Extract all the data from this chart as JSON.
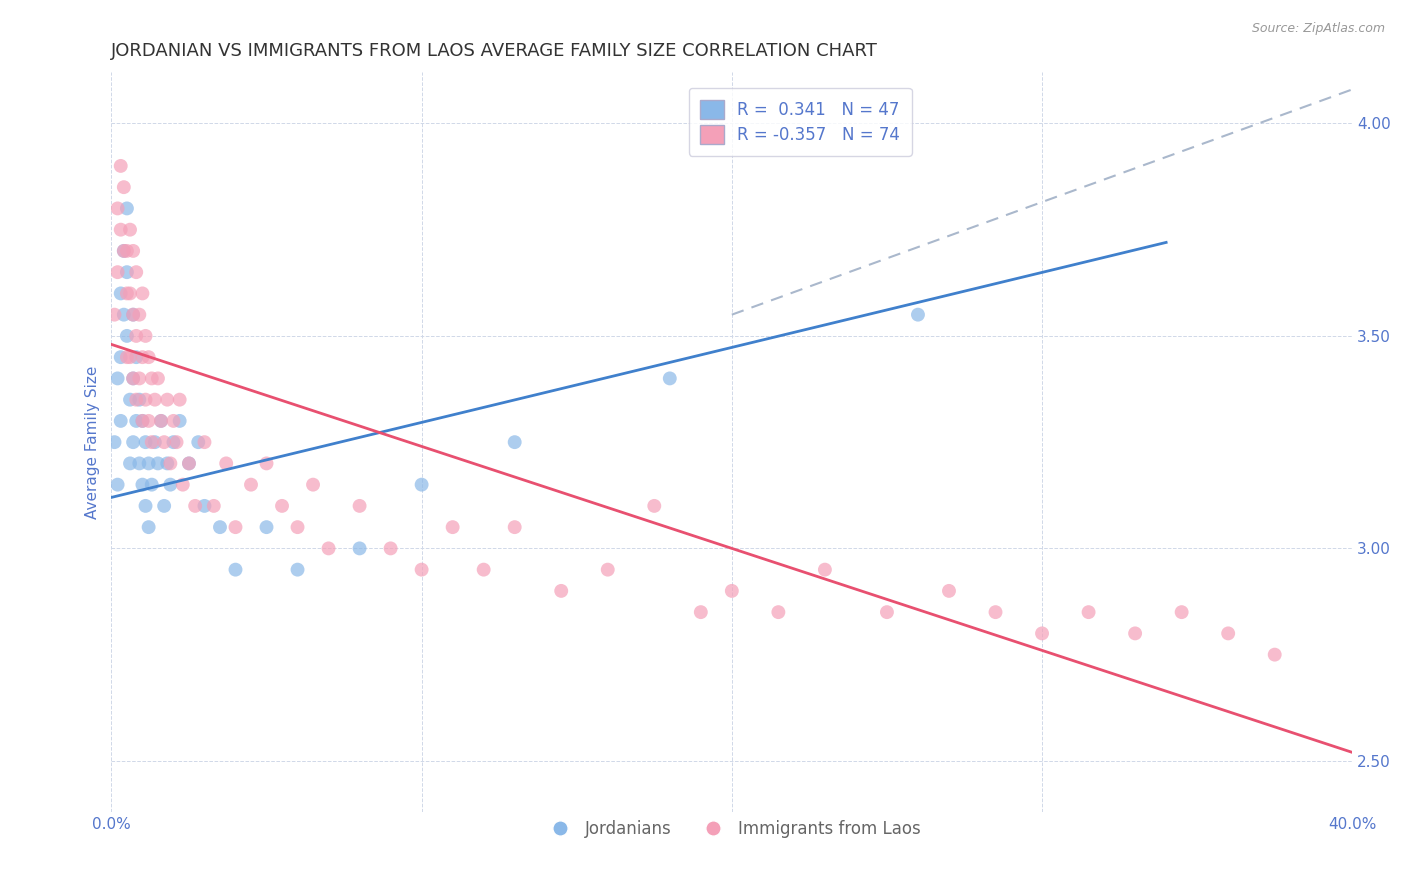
{
  "title": "JORDANIAN VS IMMIGRANTS FROM LAOS AVERAGE FAMILY SIZE CORRELATION CHART",
  "source": "Source: ZipAtlas.com",
  "ylabel": "Average Family Size",
  "ylim": [
    2.38,
    4.12
  ],
  "xlim": [
    0.0,
    0.4
  ],
  "yticks": [
    2.5,
    3.0,
    3.5,
    4.0
  ],
  "xticks": [
    0.0,
    0.1,
    0.2,
    0.3,
    0.4
  ],
  "xtick_labels": [
    "0.0%",
    "",
    "",
    "",
    "40.0%"
  ],
  "blue_R": 0.341,
  "blue_N": 47,
  "pink_R": -0.357,
  "pink_N": 74,
  "blue_color": "#8ab8e8",
  "pink_color": "#f4a0b8",
  "blue_line_color": "#4080cc",
  "pink_line_color": "#e85070",
  "dashed_line_color": "#aab8cc",
  "background_color": "#ffffff",
  "grid_color": "#d0d8e8",
  "title_color": "#333333",
  "axis_label_color": "#5577cc",
  "blue_scatter_x": [
    0.001,
    0.002,
    0.002,
    0.003,
    0.003,
    0.003,
    0.004,
    0.004,
    0.005,
    0.005,
    0.005,
    0.006,
    0.006,
    0.007,
    0.007,
    0.007,
    0.008,
    0.008,
    0.009,
    0.009,
    0.01,
    0.01,
    0.011,
    0.011,
    0.012,
    0.012,
    0.013,
    0.014,
    0.015,
    0.016,
    0.017,
    0.018,
    0.019,
    0.02,
    0.022,
    0.025,
    0.028,
    0.03,
    0.035,
    0.04,
    0.05,
    0.06,
    0.08,
    0.1,
    0.13,
    0.18,
    0.26
  ],
  "blue_scatter_y": [
    3.25,
    3.4,
    3.15,
    3.6,
    3.45,
    3.3,
    3.7,
    3.55,
    3.8,
    3.65,
    3.5,
    3.35,
    3.2,
    3.55,
    3.4,
    3.25,
    3.45,
    3.3,
    3.35,
    3.2,
    3.3,
    3.15,
    3.25,
    3.1,
    3.2,
    3.05,
    3.15,
    3.25,
    3.2,
    3.3,
    3.1,
    3.2,
    3.15,
    3.25,
    3.3,
    3.2,
    3.25,
    3.1,
    3.05,
    2.95,
    3.05,
    2.95,
    3.0,
    3.15,
    3.25,
    3.4,
    3.55
  ],
  "pink_scatter_x": [
    0.001,
    0.002,
    0.002,
    0.003,
    0.003,
    0.004,
    0.004,
    0.005,
    0.005,
    0.005,
    0.006,
    0.006,
    0.006,
    0.007,
    0.007,
    0.007,
    0.008,
    0.008,
    0.008,
    0.009,
    0.009,
    0.01,
    0.01,
    0.01,
    0.011,
    0.011,
    0.012,
    0.012,
    0.013,
    0.013,
    0.014,
    0.015,
    0.016,
    0.017,
    0.018,
    0.019,
    0.02,
    0.021,
    0.022,
    0.023,
    0.025,
    0.027,
    0.03,
    0.033,
    0.037,
    0.04,
    0.045,
    0.05,
    0.055,
    0.06,
    0.065,
    0.07,
    0.08,
    0.09,
    0.1,
    0.11,
    0.12,
    0.13,
    0.145,
    0.16,
    0.175,
    0.19,
    0.2,
    0.215,
    0.23,
    0.25,
    0.27,
    0.285,
    0.3,
    0.315,
    0.33,
    0.345,
    0.36,
    0.375
  ],
  "pink_scatter_y": [
    3.55,
    3.8,
    3.65,
    3.9,
    3.75,
    3.85,
    3.7,
    3.6,
    3.45,
    3.7,
    3.75,
    3.6,
    3.45,
    3.7,
    3.55,
    3.4,
    3.65,
    3.5,
    3.35,
    3.55,
    3.4,
    3.6,
    3.45,
    3.3,
    3.5,
    3.35,
    3.45,
    3.3,
    3.4,
    3.25,
    3.35,
    3.4,
    3.3,
    3.25,
    3.35,
    3.2,
    3.3,
    3.25,
    3.35,
    3.15,
    3.2,
    3.1,
    3.25,
    3.1,
    3.2,
    3.05,
    3.15,
    3.2,
    3.1,
    3.05,
    3.15,
    3.0,
    3.1,
    3.0,
    2.95,
    3.05,
    2.95,
    3.05,
    2.9,
    2.95,
    3.1,
    2.85,
    2.9,
    2.85,
    2.95,
    2.85,
    2.9,
    2.85,
    2.8,
    2.85,
    2.8,
    2.85,
    2.8,
    2.75
  ],
  "blue_trend_x0": 0.0,
  "blue_trend_x1": 0.34,
  "blue_trend_y0": 3.12,
  "blue_trend_y1": 3.72,
  "pink_trend_x0": 0.0,
  "pink_trend_x1": 0.4,
  "pink_trend_y0": 3.48,
  "pink_trend_y1": 2.52,
  "dashed_trend_x0": 0.2,
  "dashed_trend_x1": 0.4,
  "dashed_trend_y0": 3.55,
  "dashed_trend_y1": 4.08,
  "marker_size": 100,
  "marker_alpha": 0.7,
  "title_fontsize": 13,
  "axis_label_fontsize": 11,
  "tick_fontsize": 11,
  "legend_fontsize": 12
}
